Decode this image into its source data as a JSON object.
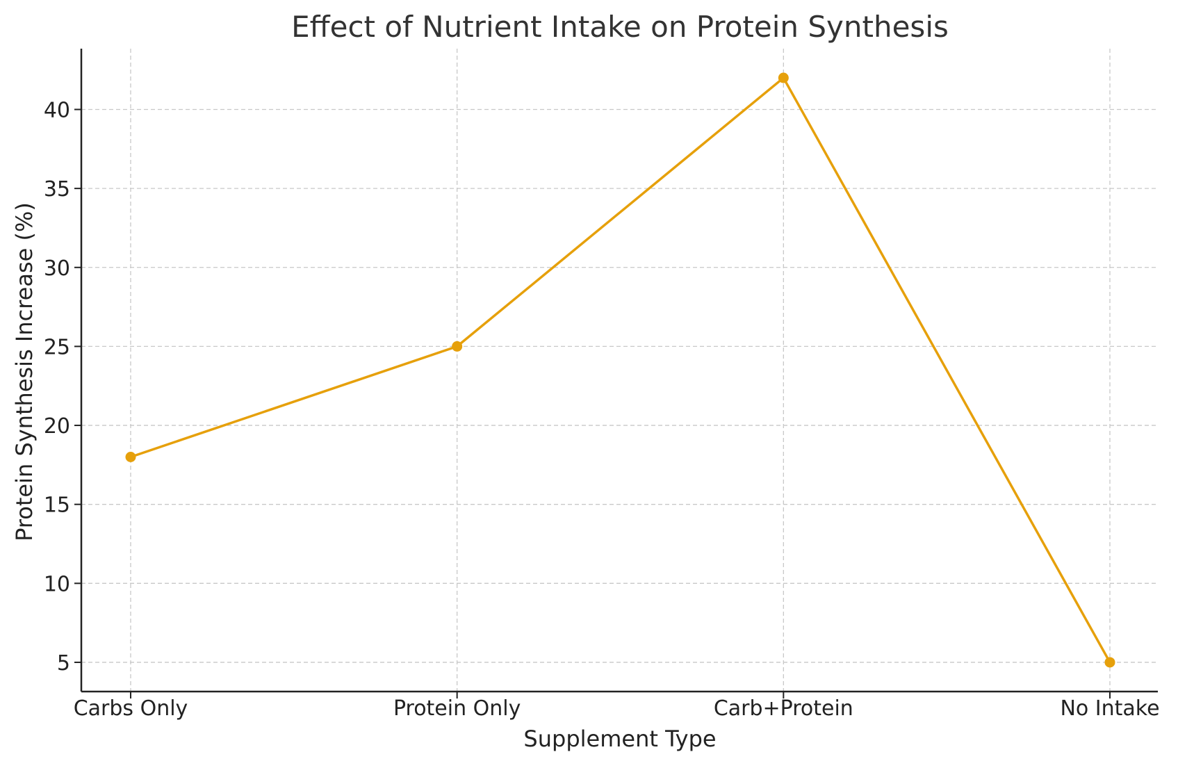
{
  "chart_data": {
    "type": "line",
    "title": "Effect of Nutrient Intake on Protein Synthesis",
    "xlabel": "Supplement Type",
    "ylabel": "Protein Synthesis Increase (%)",
    "categories": [
      "Carbs Only",
      "Protein Only",
      "Carb+Protein",
      "No Intake"
    ],
    "series": [
      {
        "values": [
          18,
          25,
          42,
          5
        ]
      }
    ],
    "ylim": [
      3.15,
      43.85
    ],
    "yticks": [
      5,
      10,
      15,
      20,
      25,
      30,
      35,
      40
    ],
    "grid": true,
    "line_color": "#E6A00B",
    "marker": "circle"
  }
}
